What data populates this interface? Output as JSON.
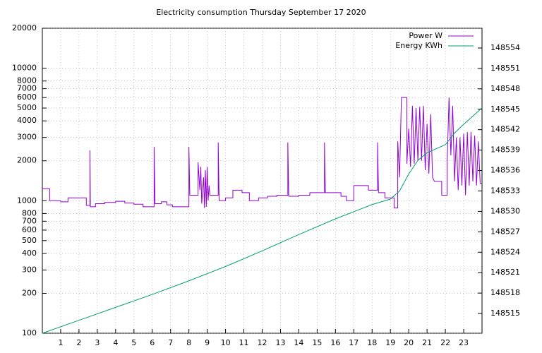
{
  "chart_data": {
    "type": "line",
    "title": "Electricity consumption Thursday September 17 2020",
    "xlim": [
      0,
      24
    ],
    "xticks": [
      1,
      2,
      3,
      4,
      5,
      6,
      7,
      8,
      9,
      10,
      11,
      12,
      13,
      14,
      15,
      16,
      17,
      18,
      19,
      20,
      21,
      22,
      23
    ],
    "ylim": [
      100,
      20000
    ],
    "ylog": true,
    "yticks": [
      100,
      200,
      300,
      400,
      500,
      600,
      700,
      800,
      1000,
      2000,
      3000,
      4000,
      5000,
      6000,
      7000,
      8000,
      10000,
      20000
    ],
    "y2lim": [
      148512.1,
      148556.9
    ],
    "y2ticks": [
      148515,
      148518,
      148521,
      148524,
      148527,
      148530,
      148533,
      148536,
      148539,
      148542,
      148545,
      148548,
      148551,
      148554
    ],
    "grid": true,
    "legend": "top-right",
    "series": [
      {
        "name": "Power W",
        "color": "#9400d3",
        "x": [
          0,
          0.4,
          0.4,
          1,
          1,
          1.4,
          1.4,
          2.4,
          2.4,
          2.6,
          2.6,
          2.62,
          2.9,
          2.9,
          3.4,
          3.4,
          4,
          4,
          4.5,
          4.5,
          5,
          5,
          5.5,
          5.5,
          6,
          6.1,
          6.1,
          6.15,
          6.5,
          6.5,
          6.8,
          6.8,
          7.1,
          7.1,
          8,
          8,
          8.05,
          8.5,
          8.5,
          8.6,
          8.65,
          8.7,
          8.8,
          8.85,
          8.9,
          8.95,
          9,
          9.05,
          9.1,
          9.15,
          9.6,
          9.6,
          9.65,
          10,
          10,
          10.4,
          10.4,
          10.9,
          10.9,
          11.3,
          11.3,
          11.8,
          11.8,
          12.3,
          12.3,
          12.8,
          12.8,
          13.4,
          13.4,
          13.45,
          14,
          14,
          14.6,
          14.6,
          15.4,
          15.4,
          15.45,
          16.3,
          16.3,
          16.6,
          16.6,
          17,
          17,
          17.8,
          17.8,
          18.3,
          18.3,
          18.35,
          18.7,
          18.7,
          19.2,
          19.2,
          19.4,
          19.4,
          19.5,
          19.55,
          19.6,
          19.9,
          19.9,
          20,
          20.1,
          20.2,
          20.3,
          20.4,
          20.5,
          20.6,
          20.7,
          20.8,
          20.9,
          21,
          21.1,
          21.2,
          21.3,
          21.4,
          21.8,
          21.8,
          22.1,
          22.1,
          22.2,
          22.3,
          22.4,
          22.5,
          22.6,
          22.7,
          22.8,
          22.9,
          23,
          23.1,
          23.2,
          23.3,
          23.4,
          23.5,
          23.6,
          23.7,
          23.8,
          23.9,
          24
        ],
        "values": [
          1230,
          1230,
          1000,
          1000,
          980,
          980,
          1050,
          1050,
          920,
          920,
          2400,
          900,
          900,
          950,
          950,
          970,
          970,
          990,
          990,
          960,
          960,
          940,
          940,
          900,
          900,
          900,
          2550,
          950,
          950,
          980,
          980,
          930,
          930,
          900,
          900,
          2550,
          1100,
          1100,
          1950,
          1200,
          1800,
          950,
          1500,
          880,
          1700,
          900,
          1800,
          1000,
          1300,
          1100,
          1100,
          2750,
          1000,
          1000,
          1050,
          1050,
          1200,
          1200,
          1150,
          1150,
          1000,
          1000,
          1050,
          1050,
          1080,
          1080,
          1100,
          1100,
          2750,
          1080,
          1080,
          1100,
          1100,
          1150,
          1150,
          2750,
          1150,
          1150,
          1080,
          1080,
          1000,
          1000,
          1300,
          1300,
          1200,
          1200,
          2750,
          1150,
          1150,
          1050,
          1050,
          880,
          880,
          2800,
          1500,
          3000,
          6000,
          6000,
          1900,
          3500,
          1800,
          5200,
          1900,
          5000,
          2000,
          5100,
          2000,
          5200,
          1700,
          3800,
          1600,
          4500,
          1500,
          1400,
          1400,
          1100,
          1100,
          2000,
          6000,
          2200,
          5200,
          1400,
          3000,
          1200,
          3000,
          1300,
          3200,
          1100,
          3300,
          1300,
          3300,
          1400,
          3100,
          1300,
          2800,
          1350,
          1350
        ]
      },
      {
        "name": "Energy KWh",
        "color": "#009e73",
        "axis": "y2",
        "x": [
          0,
          2,
          4,
          6,
          8,
          10,
          12,
          14,
          16,
          18,
          19,
          19.5,
          20,
          20.5,
          21,
          21.5,
          22,
          22.5,
          23,
          23.5,
          24
        ],
        "values": [
          148512.1,
          148514.0,
          148515.9,
          148517.8,
          148519.8,
          148521.9,
          148524.2,
          148526.6,
          148528.9,
          148531.0,
          148531.8,
          148533.0,
          148535.5,
          148537.5,
          148538.6,
          148539.2,
          148539.8,
          148541.5,
          148542.8,
          148544.0,
          148545.2
        ]
      }
    ]
  }
}
